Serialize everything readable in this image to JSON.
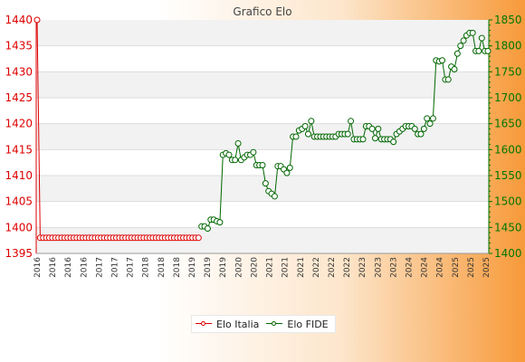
{
  "chart_data": {
    "type": "line",
    "title": "Grafico Elo",
    "xlabel": "",
    "y_left": {
      "ylim": [
        1395,
        1440
      ],
      "ticks": [
        1395,
        1400,
        1405,
        1410,
        1415,
        1420,
        1425,
        1430,
        1435,
        1440
      ],
      "color": "#dd0000"
    },
    "y_right": {
      "ylim": [
        1400,
        1850
      ],
      "ticks": [
        1400,
        1450,
        1500,
        1550,
        1600,
        1650,
        1700,
        1750,
        1800,
        1850
      ],
      "color": "#007700"
    },
    "grid": "horizontal bands",
    "legend_position": "bottom",
    "x_tick_labels": [
      "2016",
      "2016",
      "2016",
      "2016",
      "2017",
      "2017",
      "2017",
      "2018",
      "2018",
      "2018",
      "2019",
      "2019",
      "2019",
      "2020",
      "2020",
      "2021",
      "2021",
      "2021",
      "2022",
      "2022",
      "2022",
      "2023",
      "2023",
      "2023",
      "2024",
      "2024",
      "2024",
      "2025",
      "2025",
      "2025"
    ],
    "series": [
      {
        "name": "Elo Italia",
        "axis": "left",
        "color": "#dd0000",
        "values": [
          1440,
          1398,
          1398,
          1398,
          1398,
          1398,
          1398,
          1398,
          1398,
          1398,
          1398,
          1398,
          1398,
          1398,
          1398,
          1398,
          1398,
          1398,
          1398,
          1398,
          1398,
          1398,
          1398,
          1398,
          1398,
          1398,
          1398,
          1398,
          1398,
          1398,
          1398,
          1398,
          1398,
          1398,
          1398,
          1398,
          1398,
          1398,
          1398,
          1398,
          1398,
          1398,
          1398,
          1398,
          1398,
          1398,
          1398,
          1398,
          1398,
          1398,
          1398,
          1398,
          1398,
          1398
        ]
      },
      {
        "name": "Elo FIDE",
        "axis": "right",
        "color": "#006600",
        "values": [
          null,
          null,
          null,
          null,
          null,
          null,
          null,
          null,
          null,
          null,
          null,
          null,
          null,
          null,
          null,
          null,
          null,
          null,
          null,
          null,
          null,
          null,
          null,
          null,
          null,
          null,
          null,
          null,
          null,
          null,
          null,
          null,
          null,
          null,
          null,
          null,
          null,
          null,
          null,
          null,
          null,
          null,
          null,
          null,
          null,
          null,
          null,
          null,
          null,
          null,
          null,
          null,
          null,
          null,
          1452,
          1452,
          1448,
          1465,
          1465,
          1462,
          1460,
          1590,
          1593,
          1590,
          1580,
          1580,
          1612,
          1580,
          1585,
          1590,
          1590,
          1595,
          1570,
          1570,
          1570,
          1535,
          1520,
          1515,
          1510,
          1568,
          1568,
          1562,
          1555,
          1565,
          1625,
          1625,
          1637,
          1640,
          1645,
          1630,
          1655,
          1625,
          1625,
          1625,
          1625,
          1625,
          1625,
          1625,
          1625,
          1630,
          1630,
          1630,
          1630,
          1655,
          1620,
          1620,
          1620,
          1620,
          1645,
          1645,
          1640,
          1622,
          1640,
          1620,
          1620,
          1620,
          1620,
          1615,
          1630,
          1635,
          1640,
          1645,
          1645,
          1645,
          1640,
          1630,
          1630,
          1640,
          1660,
          1650,
          1660,
          1772,
          1770,
          1772,
          1735,
          1735,
          1760,
          1755,
          1785,
          1800,
          1810,
          1820,
          1825,
          1825,
          1790,
          1790,
          1815,
          1790,
          1790
        ]
      }
    ]
  },
  "legend": {
    "italia_label": "Elo Italia",
    "fide_label": "Elo FIDE"
  }
}
